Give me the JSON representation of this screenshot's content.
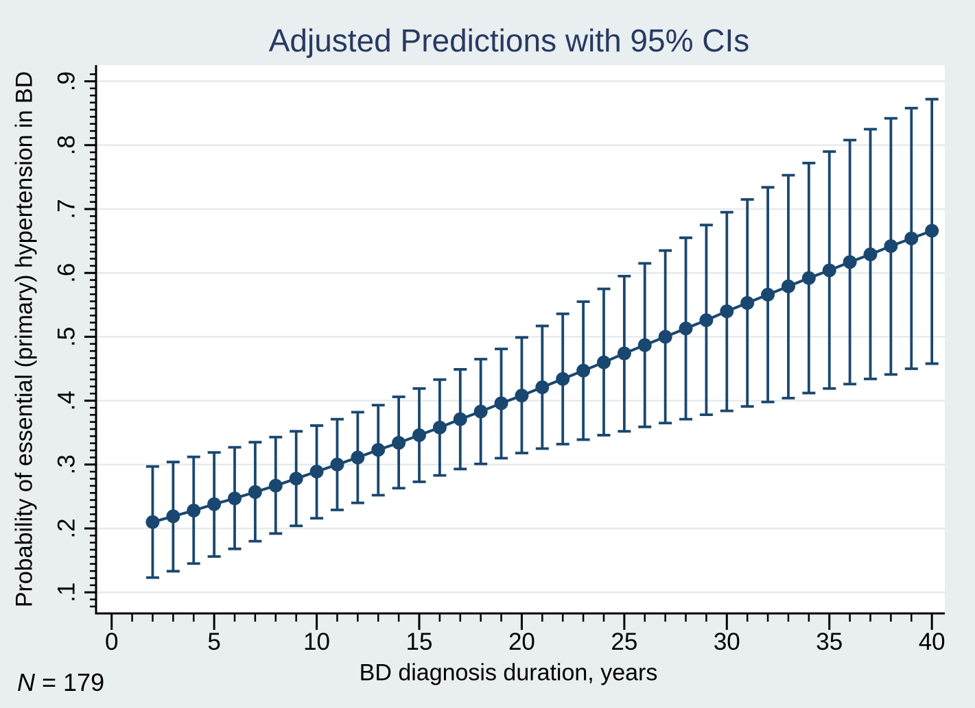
{
  "title": "Adjusted Predictions with 95% CIs",
  "x_axis": {
    "label": "BD diagnosis duration, years",
    "tick_labels": [
      "0",
      "5",
      "10",
      "15",
      "20",
      "25",
      "30",
      "35",
      "40"
    ]
  },
  "y_axis": {
    "label": "Probability of essential (primary) hypertension in BD",
    "tick_labels": [
      ".1",
      ".2",
      ".3",
      ".4",
      ".5",
      ".6",
      ".7",
      ".8",
      ".9"
    ]
  },
  "note": {
    "n_label": "N",
    "n_rest": " = 179"
  },
  "colors": {
    "background": "#e9eef1",
    "plot_background": "#ffffff",
    "gridline": "#e4ebed",
    "series": "#1a476f",
    "title": "#273a60",
    "axis": "#000000"
  },
  "chart_data": {
    "type": "scatter",
    "subtype": "point estimates with 95% CI error bars, connected by line",
    "title": "Adjusted Predictions with 95% CIs",
    "xlabel": "BD diagnosis duration, years",
    "ylabel": "Probability of essential (primary) hypertension in BD",
    "sample_note": "N = 179",
    "legend": "none",
    "grid": "horizontal gridlines at each 0.1",
    "xlim": [
      -0.8,
      40.6
    ],
    "ylim": [
      0.067,
      0.925
    ],
    "x_ticks": [
      0,
      5,
      10,
      15,
      20,
      25,
      30,
      35,
      40
    ],
    "y_ticks": [
      0.1,
      0.2,
      0.3,
      0.4,
      0.5,
      0.6,
      0.7,
      0.8,
      0.9
    ],
    "x": [
      2,
      3,
      4,
      5,
      6,
      7,
      8,
      9,
      10,
      11,
      12,
      13,
      14,
      15,
      16,
      17,
      18,
      19,
      20,
      21,
      22,
      23,
      24,
      25,
      26,
      27,
      28,
      29,
      30,
      31,
      32,
      33,
      34,
      35,
      36,
      37,
      38,
      39,
      40
    ],
    "predicted": [
      0.21,
      0.219,
      0.228,
      0.238,
      0.247,
      0.257,
      0.267,
      0.278,
      0.289,
      0.3,
      0.311,
      0.323,
      0.334,
      0.346,
      0.358,
      0.371,
      0.383,
      0.396,
      0.408,
      0.421,
      0.434,
      0.447,
      0.46,
      0.474,
      0.487,
      0.5,
      0.513,
      0.526,
      0.54,
      0.553,
      0.566,
      0.579,
      0.592,
      0.604,
      0.617,
      0.629,
      0.642,
      0.654,
      0.666
    ],
    "ci_lower": [
      0.123,
      0.133,
      0.145,
      0.156,
      0.168,
      0.18,
      0.192,
      0.204,
      0.216,
      0.229,
      0.24,
      0.252,
      0.263,
      0.273,
      0.283,
      0.293,
      0.301,
      0.31,
      0.318,
      0.325,
      0.332,
      0.339,
      0.346,
      0.352,
      0.359,
      0.365,
      0.371,
      0.378,
      0.384,
      0.391,
      0.398,
      0.404,
      0.412,
      0.419,
      0.426,
      0.434,
      0.441,
      0.45,
      0.458
    ],
    "ci_upper": [
      0.297,
      0.304,
      0.312,
      0.319,
      0.327,
      0.335,
      0.343,
      0.352,
      0.361,
      0.371,
      0.382,
      0.393,
      0.406,
      0.419,
      0.433,
      0.449,
      0.465,
      0.481,
      0.499,
      0.517,
      0.536,
      0.555,
      0.575,
      0.595,
      0.615,
      0.635,
      0.655,
      0.675,
      0.695,
      0.715,
      0.734,
      0.753,
      0.772,
      0.79,
      0.808,
      0.825,
      0.842,
      0.858,
      0.872
    ]
  }
}
